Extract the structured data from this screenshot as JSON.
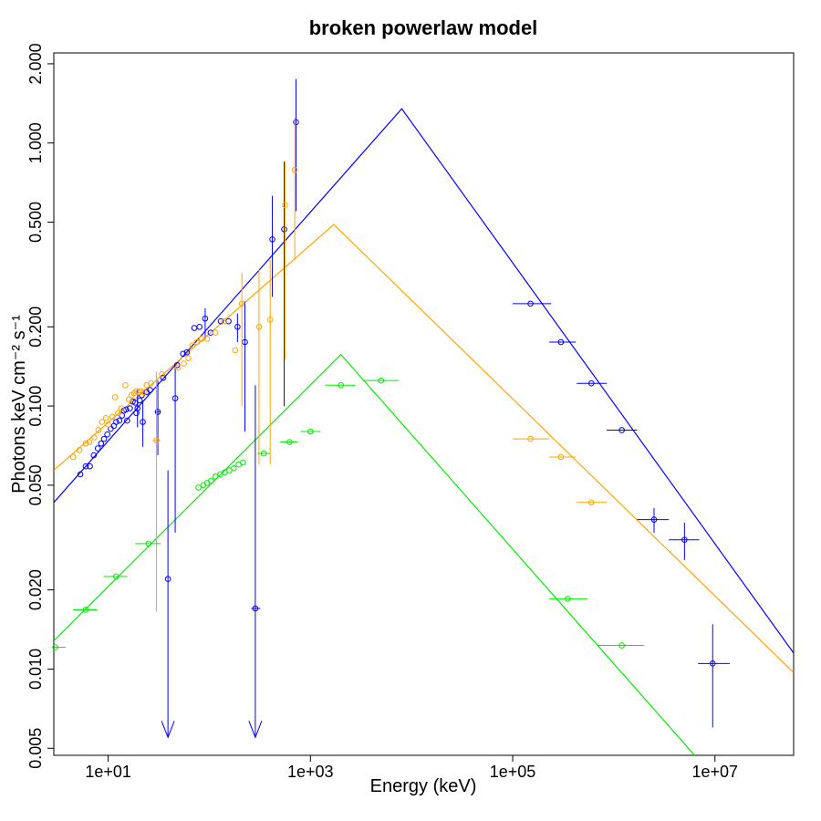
{
  "chart_data": {
    "type": "scatter",
    "title": "broken powerlaw model",
    "xlabel": "Energy (keV)",
    "ylabel": "Photons keV cm⁻² s⁻¹",
    "xscale": "log",
    "yscale": "log",
    "xlim": [
      2.9,
      60000000
    ],
    "ylim": [
      0.0047,
      2.2
    ],
    "xticks": [
      {
        "value": 10,
        "label": "1e+01"
      },
      {
        "value": 1000,
        "label": "1e+03"
      },
      {
        "value": 100000,
        "label": "1e+05"
      },
      {
        "value": 10000000,
        "label": "1e+07"
      }
    ],
    "yticks": [
      {
        "value": 0.005,
        "label": "0.005"
      },
      {
        "value": 0.01,
        "label": "0.010"
      },
      {
        "value": 0.02,
        "label": "0.020"
      },
      {
        "value": 0.05,
        "label": "0.050"
      },
      {
        "value": 0.1,
        "label": "0.100"
      },
      {
        "value": 0.2,
        "label": "0.200"
      },
      {
        "value": 0.5,
        "label": "0.500"
      },
      {
        "value": 1.0,
        "label": "1.000"
      },
      {
        "value": 2.0,
        "label": "2.000"
      }
    ],
    "grid": false,
    "legend": "none",
    "series": [
      {
        "name": "blue",
        "color": "#0000ff",
        "model": {
          "type": "broken_powerlaw",
          "points": [
            [
              2.9,
              0.043
            ],
            [
              8000,
              1.35
            ],
            [
              60000000,
              0.0115
            ]
          ]
        },
        "points": [
          {
            "x": 5.3,
            "y": 0.055
          },
          {
            "x": 6.0,
            "y": 0.059
          },
          {
            "x": 6.6,
            "y": 0.059
          },
          {
            "x": 7.2,
            "y": 0.065
          },
          {
            "x": 7.9,
            "y": 0.069
          },
          {
            "x": 8.5,
            "y": 0.072
          },
          {
            "x": 9.1,
            "y": 0.075
          },
          {
            "x": 9.8,
            "y": 0.078
          },
          {
            "x": 10.6,
            "y": 0.082
          },
          {
            "x": 11.4,
            "y": 0.084
          },
          {
            "x": 12.0,
            "y": 0.087
          },
          {
            "x": 12.9,
            "y": 0.088
          },
          {
            "x": 13.7,
            "y": 0.092
          },
          {
            "x": 14.3,
            "y": 0.096
          },
          {
            "x": 15.0,
            "y": 0.097
          },
          {
            "x": 15.4,
            "y": 0.088
          },
          {
            "x": 16.4,
            "y": 0.098
          },
          {
            "x": 17.5,
            "y": 0.104
          },
          {
            "x": 18.5,
            "y": 0.103
          },
          {
            "x": 19.0,
            "y": 0.094
          },
          {
            "x": 19.5,
            "y": 0.098,
            "yerr": [
              0.083,
              0.116
            ]
          },
          {
            "x": 20.5,
            "y": 0.105
          },
          {
            "x": 21.5,
            "y": 0.11
          },
          {
            "x": 22.0,
            "y": 0.087,
            "yerr": [
              0.07,
              0.105
            ]
          },
          {
            "x": 24.0,
            "y": 0.113
          },
          {
            "x": 26.0,
            "y": 0.115
          },
          {
            "x": 31.0,
            "y": 0.095,
            "yerr": [
              0.065,
              0.125
            ],
            "xerr": [
              29,
              33
            ]
          },
          {
            "x": 35.0,
            "y": 0.128
          },
          {
            "x": 39.0,
            "y": 0.022,
            "upper_limit": true,
            "yerr": [
              0.0055,
              0.057
            ]
          },
          {
            "x": 46.0,
            "y": 0.107,
            "yerr": [
              0.033,
              0.14
            ]
          },
          {
            "x": 48.0,
            "y": 0.143
          },
          {
            "x": 55.0,
            "y": 0.158
          },
          {
            "x": 60.0,
            "y": 0.16
          },
          {
            "x": 71.0,
            "y": 0.198
          },
          {
            "x": 80.0,
            "y": 0.2
          },
          {
            "x": 91.0,
            "y": 0.215,
            "yerr": [
              0.18,
              0.235
            ]
          },
          {
            "x": 103.0,
            "y": 0.19
          },
          {
            "x": 130.0,
            "y": 0.21
          },
          {
            "x": 155.0,
            "y": 0.21
          },
          {
            "x": 190.0,
            "y": 0.2,
            "yerr": [
              0.175,
              0.225
            ]
          },
          {
            "x": 225.0,
            "y": 0.175,
            "yerr": [
              0.08,
              0.25
            ]
          },
          {
            "x": 285.0,
            "y": 0.017,
            "upper_limit": true,
            "yerr": [
              0.0055,
              0.12
            ],
            "xerr": [
              260,
              320
            ]
          },
          {
            "x": 420.0,
            "y": 0.43,
            "yerr": [
              0.26,
              0.63
            ]
          },
          {
            "x": 550.0,
            "y": 0.47,
            "yerr": [
              0.1,
              0.85
            ]
          },
          {
            "x": 720.0,
            "y": 1.2,
            "yerr": [
              0.55,
              1.75
            ]
          },
          {
            "x": 150000,
            "y": 0.245,
            "xerr": [
              100000,
              240000
            ]
          },
          {
            "x": 300000,
            "y": 0.175,
            "xerr": [
              230000,
              420000
            ]
          },
          {
            "x": 600000,
            "y": 0.122,
            "xerr": [
              430000,
              850000
            ]
          },
          {
            "x": 1200000,
            "y": 0.081,
            "xerr": [
              850000,
              1700000
            ]
          },
          {
            "x": 2500000,
            "y": 0.037,
            "xerr": [
              1700000,
              3500000
            ],
            "yerr": [
              0.033,
              0.041
            ]
          },
          {
            "x": 5000000,
            "y": 0.031,
            "xerr": [
              3500000,
              7000000
            ],
            "yerr": [
              0.026,
              0.036
            ]
          },
          {
            "x": 9500000,
            "y": 0.0105,
            "xerr": [
              6800000,
              14000000
            ],
            "yerr": [
              0.006,
              0.0148
            ]
          }
        ]
      },
      {
        "name": "orange",
        "color": "#ffa500",
        "model": {
          "type": "broken_powerlaw",
          "points": [
            [
              2.9,
              0.057
            ],
            [
              1700,
              0.49
            ],
            [
              60000000,
              0.0097
            ]
          ]
        },
        "points": [
          {
            "x": 4.5,
            "y": 0.064
          },
          {
            "x": 5.2,
            "y": 0.068
          },
          {
            "x": 6.0,
            "y": 0.072
          },
          {
            "x": 6.5,
            "y": 0.073
          },
          {
            "x": 7.3,
            "y": 0.076
          },
          {
            "x": 8.0,
            "y": 0.081
          },
          {
            "x": 8.7,
            "y": 0.087
          },
          {
            "x": 9.5,
            "y": 0.09
          },
          {
            "x": 10.0,
            "y": 0.085
          },
          {
            "x": 11.0,
            "y": 0.091
          },
          {
            "x": 11.7,
            "y": 0.108
          },
          {
            "x": 12.5,
            "y": 0.094
          },
          {
            "x": 13.5,
            "y": 0.098
          },
          {
            "x": 14.8,
            "y": 0.12
          },
          {
            "x": 16.0,
            "y": 0.106
          },
          {
            "x": 17.0,
            "y": 0.11
          },
          {
            "x": 18.0,
            "y": 0.112
          },
          {
            "x": 19.0,
            "y": 0.114
          },
          {
            "x": 20.0,
            "y": 0.113
          },
          {
            "x": 21.0,
            "y": 0.114
          },
          {
            "x": 22.5,
            "y": 0.113
          },
          {
            "x": 24.0,
            "y": 0.12
          },
          {
            "x": 26.5,
            "y": 0.122
          },
          {
            "x": 30.0,
            "y": 0.074,
            "yerr": [
              0.0165,
              0.135
            ],
            "xerr": [
              27.5,
              33
            ]
          },
          {
            "x": 34.0,
            "y": 0.132
          },
          {
            "x": 49.0,
            "y": 0.14
          },
          {
            "x": 56.0,
            "y": 0.145
          },
          {
            "x": 62.0,
            "y": 0.152
          },
          {
            "x": 68.0,
            "y": 0.17
          },
          {
            "x": 75.0,
            "y": 0.175
          },
          {
            "x": 84.0,
            "y": 0.18
          },
          {
            "x": 95.0,
            "y": 0.18
          },
          {
            "x": 115.0,
            "y": 0.19
          },
          {
            "x": 140.0,
            "y": 0.21
          },
          {
            "x": 180.0,
            "y": 0.163
          },
          {
            "x": 210.0,
            "y": 0.245,
            "yerr": [
              0.1,
              0.32
            ]
          },
          {
            "x": 310.0,
            "y": 0.2,
            "yerr": [
              0.06,
              0.33
            ]
          },
          {
            "x": 400.0,
            "y": 0.213,
            "yerr": [
              0.06,
              0.36
            ]
          },
          {
            "x": 560.0,
            "y": 0.58,
            "yerr": [
              0.15,
              0.85
            ]
          },
          {
            "x": 700.0,
            "y": 0.79,
            "yerr": [
              0.36,
              1.25
            ]
          },
          {
            "x": 150000,
            "y": 0.075,
            "xerr": [
              100000,
              230000
            ]
          },
          {
            "x": 300000,
            "y": 0.064,
            "xerr": [
              230000,
              420000
            ]
          },
          {
            "x": 600000,
            "y": 0.043,
            "xerr": [
              430000,
              850000
            ]
          }
        ]
      },
      {
        "name": "green",
        "color": "#00ee00",
        "model": {
          "type": "broken_powerlaw",
          "points": [
            [
              2.9,
              0.0128
            ],
            [
              2000,
              0.157
            ],
            [
              6300000,
              0.0047
            ]
          ]
        },
        "points": [
          {
            "x": 3.0,
            "y": 0.0121,
            "xerr": [
              2.9,
              3.8
            ]
          },
          {
            "x": 6.0,
            "y": 0.0168,
            "xerr": [
              4.5,
              7.8
            ]
          },
          {
            "x": 12.0,
            "y": 0.0225,
            "xerr": [
              9,
              15.5
            ]
          },
          {
            "x": 25.0,
            "y": 0.03,
            "xerr": [
              18.5,
              33
            ]
          },
          {
            "x": 78.0,
            "y": 0.049
          },
          {
            "x": 87.0,
            "y": 0.05
          },
          {
            "x": 95.0,
            "y": 0.051
          },
          {
            "x": 104.0,
            "y": 0.052
          },
          {
            "x": 115.0,
            "y": 0.054
          },
          {
            "x": 128.0,
            "y": 0.055
          },
          {
            "x": 142.0,
            "y": 0.056
          },
          {
            "x": 158.0,
            "y": 0.057
          },
          {
            "x": 175.0,
            "y": 0.058
          },
          {
            "x": 195.0,
            "y": 0.06
          },
          {
            "x": 215.0,
            "y": 0.061
          },
          {
            "x": 345.0,
            "y": 0.066,
            "xerr": [
              300,
              400
            ]
          },
          {
            "x": 620.0,
            "y": 0.073,
            "xerr": [
              500,
              750
            ]
          },
          {
            "x": 1000.0,
            "y": 0.08,
            "xerr": [
              800,
              1250
            ]
          },
          {
            "x": 2000.0,
            "y": 0.12,
            "xerr": [
              1400,
              2800
            ]
          },
          {
            "x": 5000.0,
            "y": 0.125,
            "xerr": [
              3300,
              7500
            ]
          },
          {
            "x": 350000,
            "y": 0.0185,
            "xerr": [
              230000,
              550000
            ]
          },
          {
            "x": 1200000,
            "y": 0.0123,
            "xerr": [
              700000,
              2000000
            ]
          }
        ]
      }
    ]
  }
}
